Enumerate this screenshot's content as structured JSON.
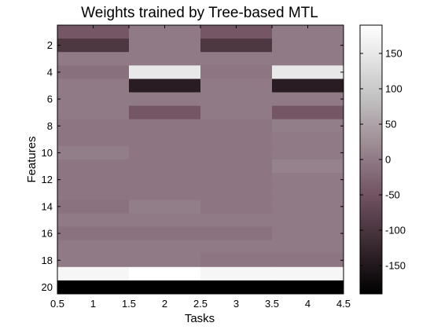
{
  "chart_data": {
    "type": "heatmap",
    "title": "Weights trained by Tree-based MTL",
    "xlabel": "Tasks",
    "ylabel": "Features",
    "x_ticks": [
      "0.5",
      "1",
      "1.5",
      "2",
      "2.5",
      "3",
      "3.5",
      "4",
      "4.5"
    ],
    "y_ticks": [
      "2",
      "4",
      "6",
      "8",
      "10",
      "12",
      "14",
      "16",
      "18",
      "20"
    ],
    "colorbar_ticks": [
      "150",
      "100",
      "50",
      "0",
      "-50",
      "-100",
      "-150"
    ],
    "colorbar_range": [
      -190,
      190
    ],
    "xlim": [
      0.5,
      4.5
    ],
    "ylim": [
      20.5,
      0.5
    ],
    "colormap": "bone",
    "tasks": [
      1,
      2,
      3,
      4
    ],
    "features": [
      1,
      2,
      3,
      4,
      5,
      6,
      7,
      8,
      9,
      10,
      11,
      12,
      13,
      14,
      15,
      16,
      17,
      18,
      19,
      20
    ],
    "values": [
      [
        -45,
        0,
        -45,
        0
      ],
      [
        -95,
        0,
        -95,
        0
      ],
      [
        0,
        0,
        0,
        0
      ],
      [
        -12,
        150,
        -5,
        150
      ],
      [
        0,
        -140,
        0,
        -140
      ],
      [
        0,
        0,
        0,
        0
      ],
      [
        0,
        -45,
        0,
        -45
      ],
      [
        -5,
        -5,
        -5,
        5
      ],
      [
        -5,
        -5,
        -5,
        0
      ],
      [
        5,
        -5,
        -5,
        0
      ],
      [
        -5,
        -5,
        -5,
        10
      ],
      [
        -5,
        -5,
        -5,
        0
      ],
      [
        -5,
        -5,
        -5,
        0
      ],
      [
        -10,
        5,
        -5,
        0
      ],
      [
        0,
        0,
        0,
        0
      ],
      [
        -10,
        -10,
        -10,
        0
      ],
      [
        0,
        0,
        0,
        0
      ],
      [
        0,
        0,
        -5,
        -5
      ],
      [
        175,
        190,
        175,
        175
      ],
      [
        -190,
        -190,
        -190,
        -190
      ]
    ]
  }
}
